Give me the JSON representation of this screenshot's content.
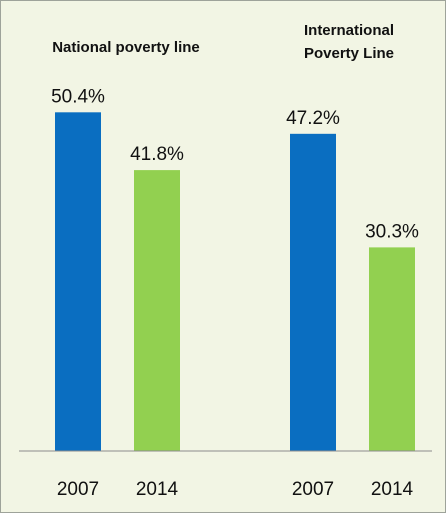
{
  "chart_data": {
    "type": "bar",
    "groups": [
      {
        "title": "National poverty line",
        "bars": [
          {
            "category": "2007",
            "value": 50.4,
            "label": "50.4%"
          },
          {
            "category": "2014",
            "value": 41.8,
            "label": "41.8%"
          }
        ]
      },
      {
        "title": "International Poverty Line",
        "title_lines": [
          "International",
          "Poverty Line"
        ],
        "bars": [
          {
            "category": "2007",
            "value": 47.2,
            "label": "47.2%"
          },
          {
            "category": "2014",
            "value": 30.3,
            "label": "30.3%"
          }
        ]
      }
    ],
    "ylim": [
      0,
      60
    ],
    "grid": false,
    "legend": "none",
    "colors": {
      "2007": "#0a6ec1",
      "2014": "#92d050"
    },
    "background": "#f2f5e4"
  }
}
